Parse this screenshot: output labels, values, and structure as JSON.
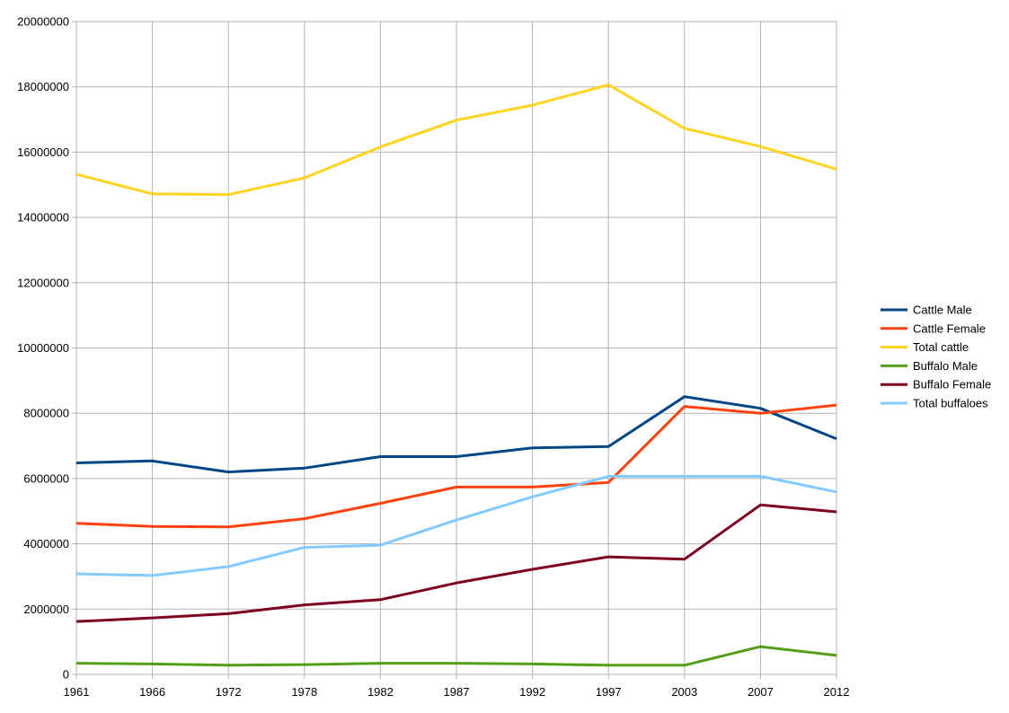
{
  "chart_data": {
    "type": "line",
    "title": "",
    "xlabel": "",
    "ylabel": "",
    "categories": [
      "1961",
      "1966",
      "1972",
      "1978",
      "1982",
      "1987",
      "1992",
      "1997",
      "2003",
      "2007",
      "2012"
    ],
    "ylim": [
      0,
      20000000
    ],
    "yticks": [
      0,
      2000000,
      4000000,
      6000000,
      8000000,
      10000000,
      12000000,
      14000000,
      16000000,
      18000000,
      20000000
    ],
    "ytick_labels": [
      "0",
      "2000000",
      "4000000",
      "6000000",
      "8000000",
      "10000000",
      "12000000",
      "14000000",
      "16000000",
      "18000000",
      "20000000"
    ],
    "grid": true,
    "legend_position": "right",
    "series": [
      {
        "name": "Cattle Male",
        "color": "#004586",
        "values": [
          6480000,
          6540000,
          6200000,
          6320000,
          6670000,
          6670000,
          6940000,
          6980000,
          8510000,
          8150000,
          7220000
        ]
      },
      {
        "name": "Cattle Female",
        "color": "#ff420e",
        "values": [
          4630000,
          4530000,
          4520000,
          4770000,
          5240000,
          5740000,
          5740000,
          5880000,
          8210000,
          8000000,
          8250000
        ]
      },
      {
        "name": "Total cattle",
        "color": "#ffd320",
        "values": [
          15320000,
          14720000,
          14700000,
          15210000,
          16160000,
          16980000,
          17440000,
          18060000,
          16730000,
          16170000,
          15480000
        ]
      },
      {
        "name": "Buffalo Male",
        "color": "#579d1c",
        "values": [
          340000,
          320000,
          280000,
          300000,
          340000,
          340000,
          320000,
          280000,
          280000,
          850000,
          580000
        ]
      },
      {
        "name": "Buffalo Female",
        "color": "#7e0021",
        "values": [
          1620000,
          1730000,
          1860000,
          2130000,
          2290000,
          2800000,
          3220000,
          3600000,
          3530000,
          5190000,
          4980000
        ]
      },
      {
        "name": "Total buffaloes",
        "color": "#83caff",
        "values": [
          3080000,
          3030000,
          3300000,
          3890000,
          3960000,
          4730000,
          5440000,
          6070000,
          6070000,
          6070000,
          5590000
        ]
      }
    ]
  }
}
